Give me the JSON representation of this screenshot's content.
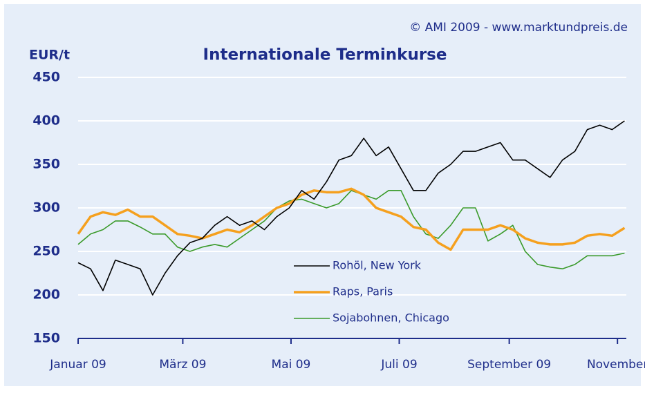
{
  "chart_data": {
    "type": "line",
    "title": "Internationale Terminkurse",
    "source": "© AMI 2009 - www.marktundpreis.de",
    "ylabel": "EUR/t",
    "x": [
      0,
      7,
      14,
      21,
      28,
      35,
      42,
      49,
      56,
      63,
      70,
      77,
      84,
      91,
      98,
      105,
      112,
      119,
      126,
      133,
      140,
      147,
      154,
      161,
      168,
      175,
      182,
      189,
      196,
      203,
      210,
      217,
      224,
      231,
      238,
      245,
      252,
      259,
      266,
      273,
      280,
      287,
      294,
      301,
      308
    ],
    "xlim": [
      0,
      309
    ],
    "xticks": [
      {
        "value": 0,
        "label": "Januar 09"
      },
      {
        "value": 59,
        "label": "März 09"
      },
      {
        "value": 120,
        "label": "Mai 09"
      },
      {
        "value": 181,
        "label": "Juli 09"
      },
      {
        "value": 243,
        "label": "September 09"
      },
      {
        "value": 304,
        "label": "November"
      }
    ],
    "ylim": [
      150,
      450
    ],
    "yticks": [
      150,
      200,
      250,
      300,
      350,
      400,
      450
    ],
    "grid": true,
    "legend": "center",
    "series": [
      {
        "name": "Rohöl, New York",
        "color": "#000000",
        "values": [
          237,
          230,
          205,
          240,
          235,
          230,
          200,
          225,
          245,
          260,
          265,
          280,
          290,
          280,
          285,
          275,
          290,
          300,
          320,
          310,
          330,
          355,
          360,
          380,
          360,
          370,
          345,
          320,
          320,
          340,
          350,
          365,
          365,
          370,
          375,
          355,
          355,
          345,
          335,
          355,
          365,
          390,
          395,
          390,
          400
        ]
      },
      {
        "name": "Raps, Paris",
        "color": "#f5a01e",
        "values": [
          270,
          290,
          295,
          292,
          298,
          290,
          290,
          280,
          270,
          268,
          265,
          270,
          275,
          272,
          280,
          290,
          300,
          305,
          315,
          320,
          318,
          318,
          322,
          315,
          300,
          295,
          290,
          278,
          275,
          260,
          252,
          275,
          275,
          275,
          280,
          275,
          265,
          260,
          258,
          258,
          260,
          268,
          270,
          268,
          277
        ]
      },
      {
        "name": "Sojabohnen, Chicago",
        "color": "#3a9a2a",
        "values": [
          258,
          270,
          275,
          285,
          285,
          278,
          270,
          270,
          255,
          250,
          255,
          258,
          255,
          265,
          275,
          285,
          300,
          308,
          310,
          305,
          300,
          305,
          320,
          315,
          310,
          320,
          320,
          290,
          270,
          265,
          280,
          300,
          300,
          262,
          270,
          280,
          250,
          235,
          232,
          230,
          235,
          245,
          245,
          245,
          248
        ]
      }
    ]
  }
}
